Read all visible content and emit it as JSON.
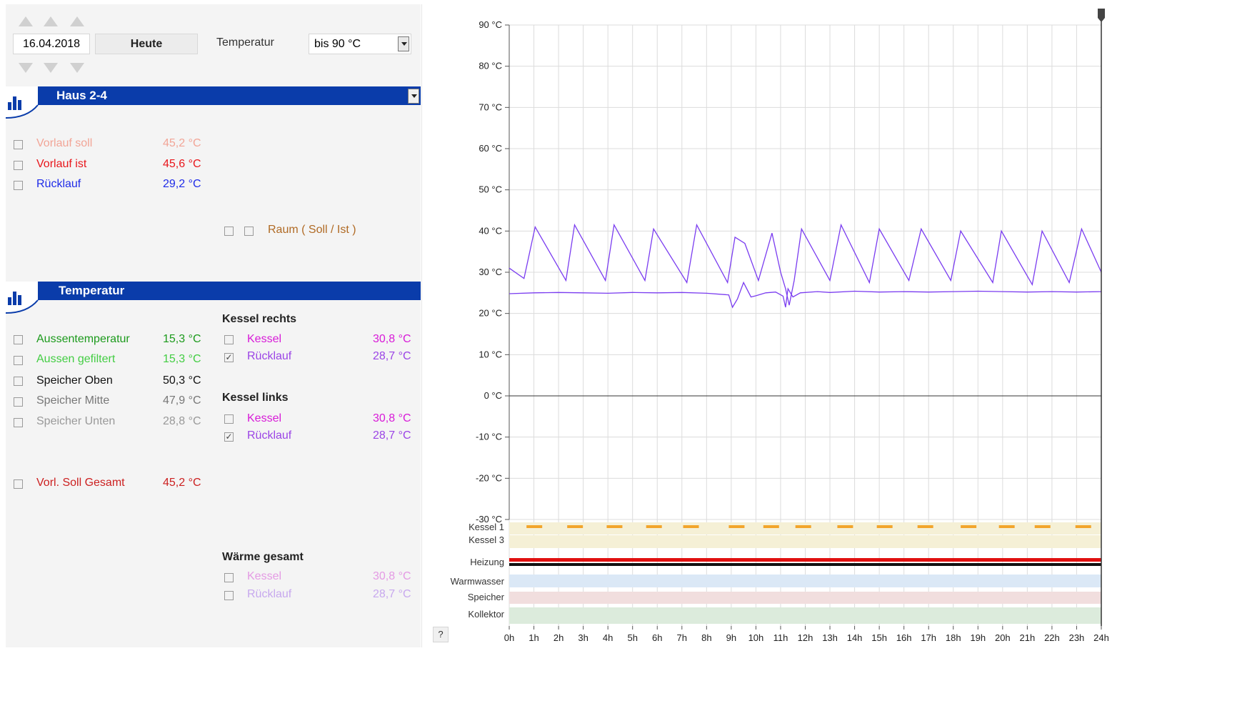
{
  "header": {
    "date_value": "16.04.2018",
    "today_button": "Heute",
    "temperature_label": "Temperatur",
    "range_select": "bis 90 °C"
  },
  "haus_panel": {
    "title": "Haus 2-4",
    "rows": [
      {
        "label": "Vorlauf soll",
        "value": "45,2 °C",
        "color": "#f2a597",
        "checked": false
      },
      {
        "label": "Vorlauf ist",
        "value": "45,6 °C",
        "color": "#e8161b",
        "checked": false
      },
      {
        "label": "Rücklauf",
        "value": "29,2 °C",
        "color": "#1f2be8",
        "checked": false
      }
    ],
    "room_label": "Raum ( Soll / Ist )",
    "room_color": "#b06a24"
  },
  "temp_panel": {
    "title": "Temperatur",
    "left_rows": [
      {
        "label": "Aussentemperatur",
        "value": "15,3 °C",
        "color": "#1c9a1c",
        "checked": false
      },
      {
        "label": "Aussen gefiltert",
        "value": "15,3 °C",
        "color": "#43cd43",
        "checked": false
      },
      {
        "label": "Speicher Oben",
        "value": "50,3 °C",
        "color": "#111111",
        "checked": false
      },
      {
        "label": "Speicher Mitte",
        "value": "47,9 °C",
        "color": "#777777",
        "checked": false
      },
      {
        "label": "Speicher Unten",
        "value": "28,8 °C",
        "color": "#999999",
        "checked": false
      }
    ],
    "vorl_soll": {
      "label": "Vorl. Soll Gesamt",
      "value": "45,2 °C",
      "color": "#cc2020",
      "checked": false
    },
    "kessel_rechts": {
      "title": "Kessel rechts",
      "rows": [
        {
          "label": "Kessel",
          "value": "30,8 °C",
          "color": "#d81ad8",
          "checked": false
        },
        {
          "label": "Rücklauf",
          "value": "28,7 °C",
          "color": "#9b44e6",
          "checked": true
        }
      ]
    },
    "kessel_links": {
      "title": "Kessel links",
      "rows": [
        {
          "label": "Kessel",
          "value": "30,8 °C",
          "color": "#d81ad8",
          "checked": false
        },
        {
          "label": "Rücklauf",
          "value": "28,7 °C",
          "color": "#9b44e6",
          "checked": true
        }
      ]
    },
    "waerme_gesamt": {
      "title": "Wärme gesamt",
      "rows": [
        {
          "label": "Kessel",
          "value": "30,8 °C",
          "color": "#e49ae4",
          "checked": false
        },
        {
          "label": "Rücklauf",
          "value": "28,7 °C",
          "color": "#c7a8ee",
          "checked": false
        }
      ]
    }
  },
  "help_label": "?",
  "chart_data": {
    "type": "line",
    "y_ticks": [
      "90 °C",
      "80 °C",
      "70 °C",
      "60 °C",
      "50 °C",
      "40 °C",
      "30 °C",
      "20 °C",
      "10 °C",
      "0 °C",
      "-10 °C",
      "-20 °C",
      "-30 °C"
    ],
    "x_ticks": [
      "0h",
      "1h",
      "2h",
      "3h",
      "4h",
      "5h",
      "6h",
      "7h",
      "8h",
      "9h",
      "10h",
      "11h",
      "12h",
      "13h",
      "14h",
      "15h",
      "16h",
      "17h",
      "18h",
      "19h",
      "20h",
      "21h",
      "22h",
      "23h",
      "24h"
    ],
    "ylim": [
      -30,
      90
    ],
    "xlim": [
      0,
      24
    ],
    "grid": true,
    "series": [
      {
        "color": "#7a3cf0",
        "peaks": [
          [
            0,
            31
          ],
          [
            0.6,
            28.5
          ],
          [
            1.05,
            41
          ],
          [
            2.3,
            28
          ],
          [
            2.65,
            41.5
          ],
          [
            3.9,
            28
          ],
          [
            4.25,
            41.5
          ],
          [
            5.5,
            28
          ],
          [
            5.85,
            40.5
          ],
          [
            7.2,
            27.5
          ],
          [
            7.6,
            41.5
          ],
          [
            8.85,
            27.5
          ],
          [
            9.15,
            38.5
          ],
          [
            9.55,
            37
          ],
          [
            10.1,
            28
          ],
          [
            10.65,
            39.5
          ],
          [
            11.0,
            30
          ],
          [
            11.2,
            26
          ],
          [
            11.35,
            22
          ],
          [
            11.55,
            28
          ],
          [
            11.85,
            40.5
          ],
          [
            13.0,
            28
          ],
          [
            13.45,
            41.5
          ],
          [
            14.6,
            27.5
          ],
          [
            15.0,
            40.5
          ],
          [
            16.2,
            28
          ],
          [
            16.7,
            40.5
          ],
          [
            17.9,
            28
          ],
          [
            18.3,
            40
          ],
          [
            19.6,
            27.5
          ],
          [
            19.95,
            40
          ],
          [
            21.2,
            27
          ],
          [
            21.6,
            40
          ],
          [
            22.7,
            27.5
          ],
          [
            23.2,
            40.5
          ],
          [
            24,
            30
          ]
        ]
      },
      {
        "color": "#7a3cf0",
        "points": [
          [
            0,
            24.8
          ],
          [
            1,
            25
          ],
          [
            2,
            25.1
          ],
          [
            3,
            25
          ],
          [
            4,
            24.9
          ],
          [
            5,
            25.1
          ],
          [
            6,
            25
          ],
          [
            7,
            25.1
          ],
          [
            8,
            24.9
          ],
          [
            8.9,
            24.5
          ],
          [
            9.05,
            21.5
          ],
          [
            9.25,
            23.5
          ],
          [
            9.5,
            27.5
          ],
          [
            9.8,
            24
          ],
          [
            10,
            24.3
          ],
          [
            10.4,
            25
          ],
          [
            10.8,
            25.2
          ],
          [
            11.1,
            24.2
          ],
          [
            11.2,
            21.5
          ],
          [
            11.3,
            26
          ],
          [
            11.5,
            24
          ],
          [
            11.8,
            25
          ],
          [
            12.5,
            25.3
          ],
          [
            13,
            25.1
          ],
          [
            14,
            25.4
          ],
          [
            15,
            25.2
          ],
          [
            16,
            25.3
          ],
          [
            17,
            25.2
          ],
          [
            18,
            25.3
          ],
          [
            19,
            25.4
          ],
          [
            20,
            25.3
          ],
          [
            21,
            25.2
          ],
          [
            22,
            25.3
          ],
          [
            23,
            25.2
          ],
          [
            24,
            25.3
          ]
        ]
      }
    ],
    "status_lanes": [
      {
        "label": "Kessel 1",
        "color": "#f5f0d6",
        "dash_color": "#f2a52b",
        "dash_hours": [
          0.7,
          2.35,
          3.95,
          5.55,
          7.05,
          8.9,
          10.3,
          11.6,
          13.3,
          14.9,
          16.55,
          18.3,
          19.85,
          21.3,
          22.95
        ]
      },
      {
        "label": "Kessel 3",
        "color": "#f5f0d6"
      },
      {
        "label": "Heizung",
        "colors": [
          "#e01010",
          "#111111"
        ]
      },
      {
        "label": "Warmwasser",
        "color": "#dbe8f6"
      },
      {
        "label": "Speicher",
        "color": "#f1dede"
      },
      {
        "label": "Kollektor",
        "color": "#dcebdc"
      }
    ]
  }
}
